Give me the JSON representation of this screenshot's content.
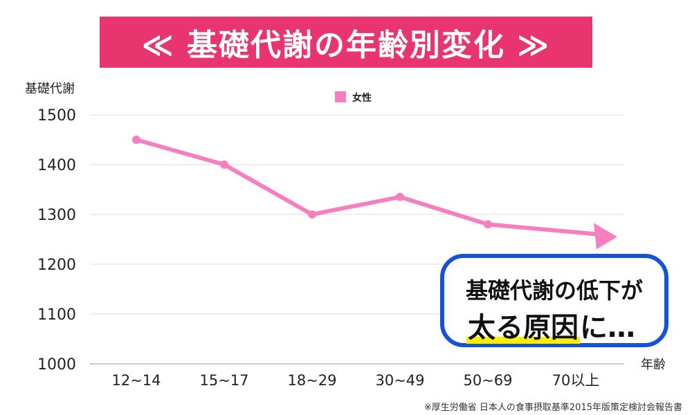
{
  "banner": {
    "title": "≪ 基礎代謝の年齢別変化 ≫"
  },
  "chart_data": {
    "type": "line",
    "ylabel": "基礎代謝",
    "xlabel": "年齢",
    "categories": [
      "12~14",
      "15~17",
      "18~29",
      "30~49",
      "50~69",
      "70以上"
    ],
    "series": [
      {
        "name": "女性",
        "values": [
          1450,
          1400,
          1300,
          1335,
          1280,
          1255
        ]
      }
    ],
    "ylim": [
      1000,
      1500
    ],
    "yticks": [
      1000,
      1100,
      1200,
      1300,
      1400,
      1500
    ],
    "grid": "horizontal",
    "legend": "top-center",
    "last_point_style": "arrow",
    "color": "#f67fbf"
  },
  "callout": {
    "line1": "基礎代謝の低下が",
    "highlight": "太る原因",
    "suffix": "に…"
  },
  "source": "※厚生労働省 日本人の食事摂取基準2015年版策定検討会報告書"
}
